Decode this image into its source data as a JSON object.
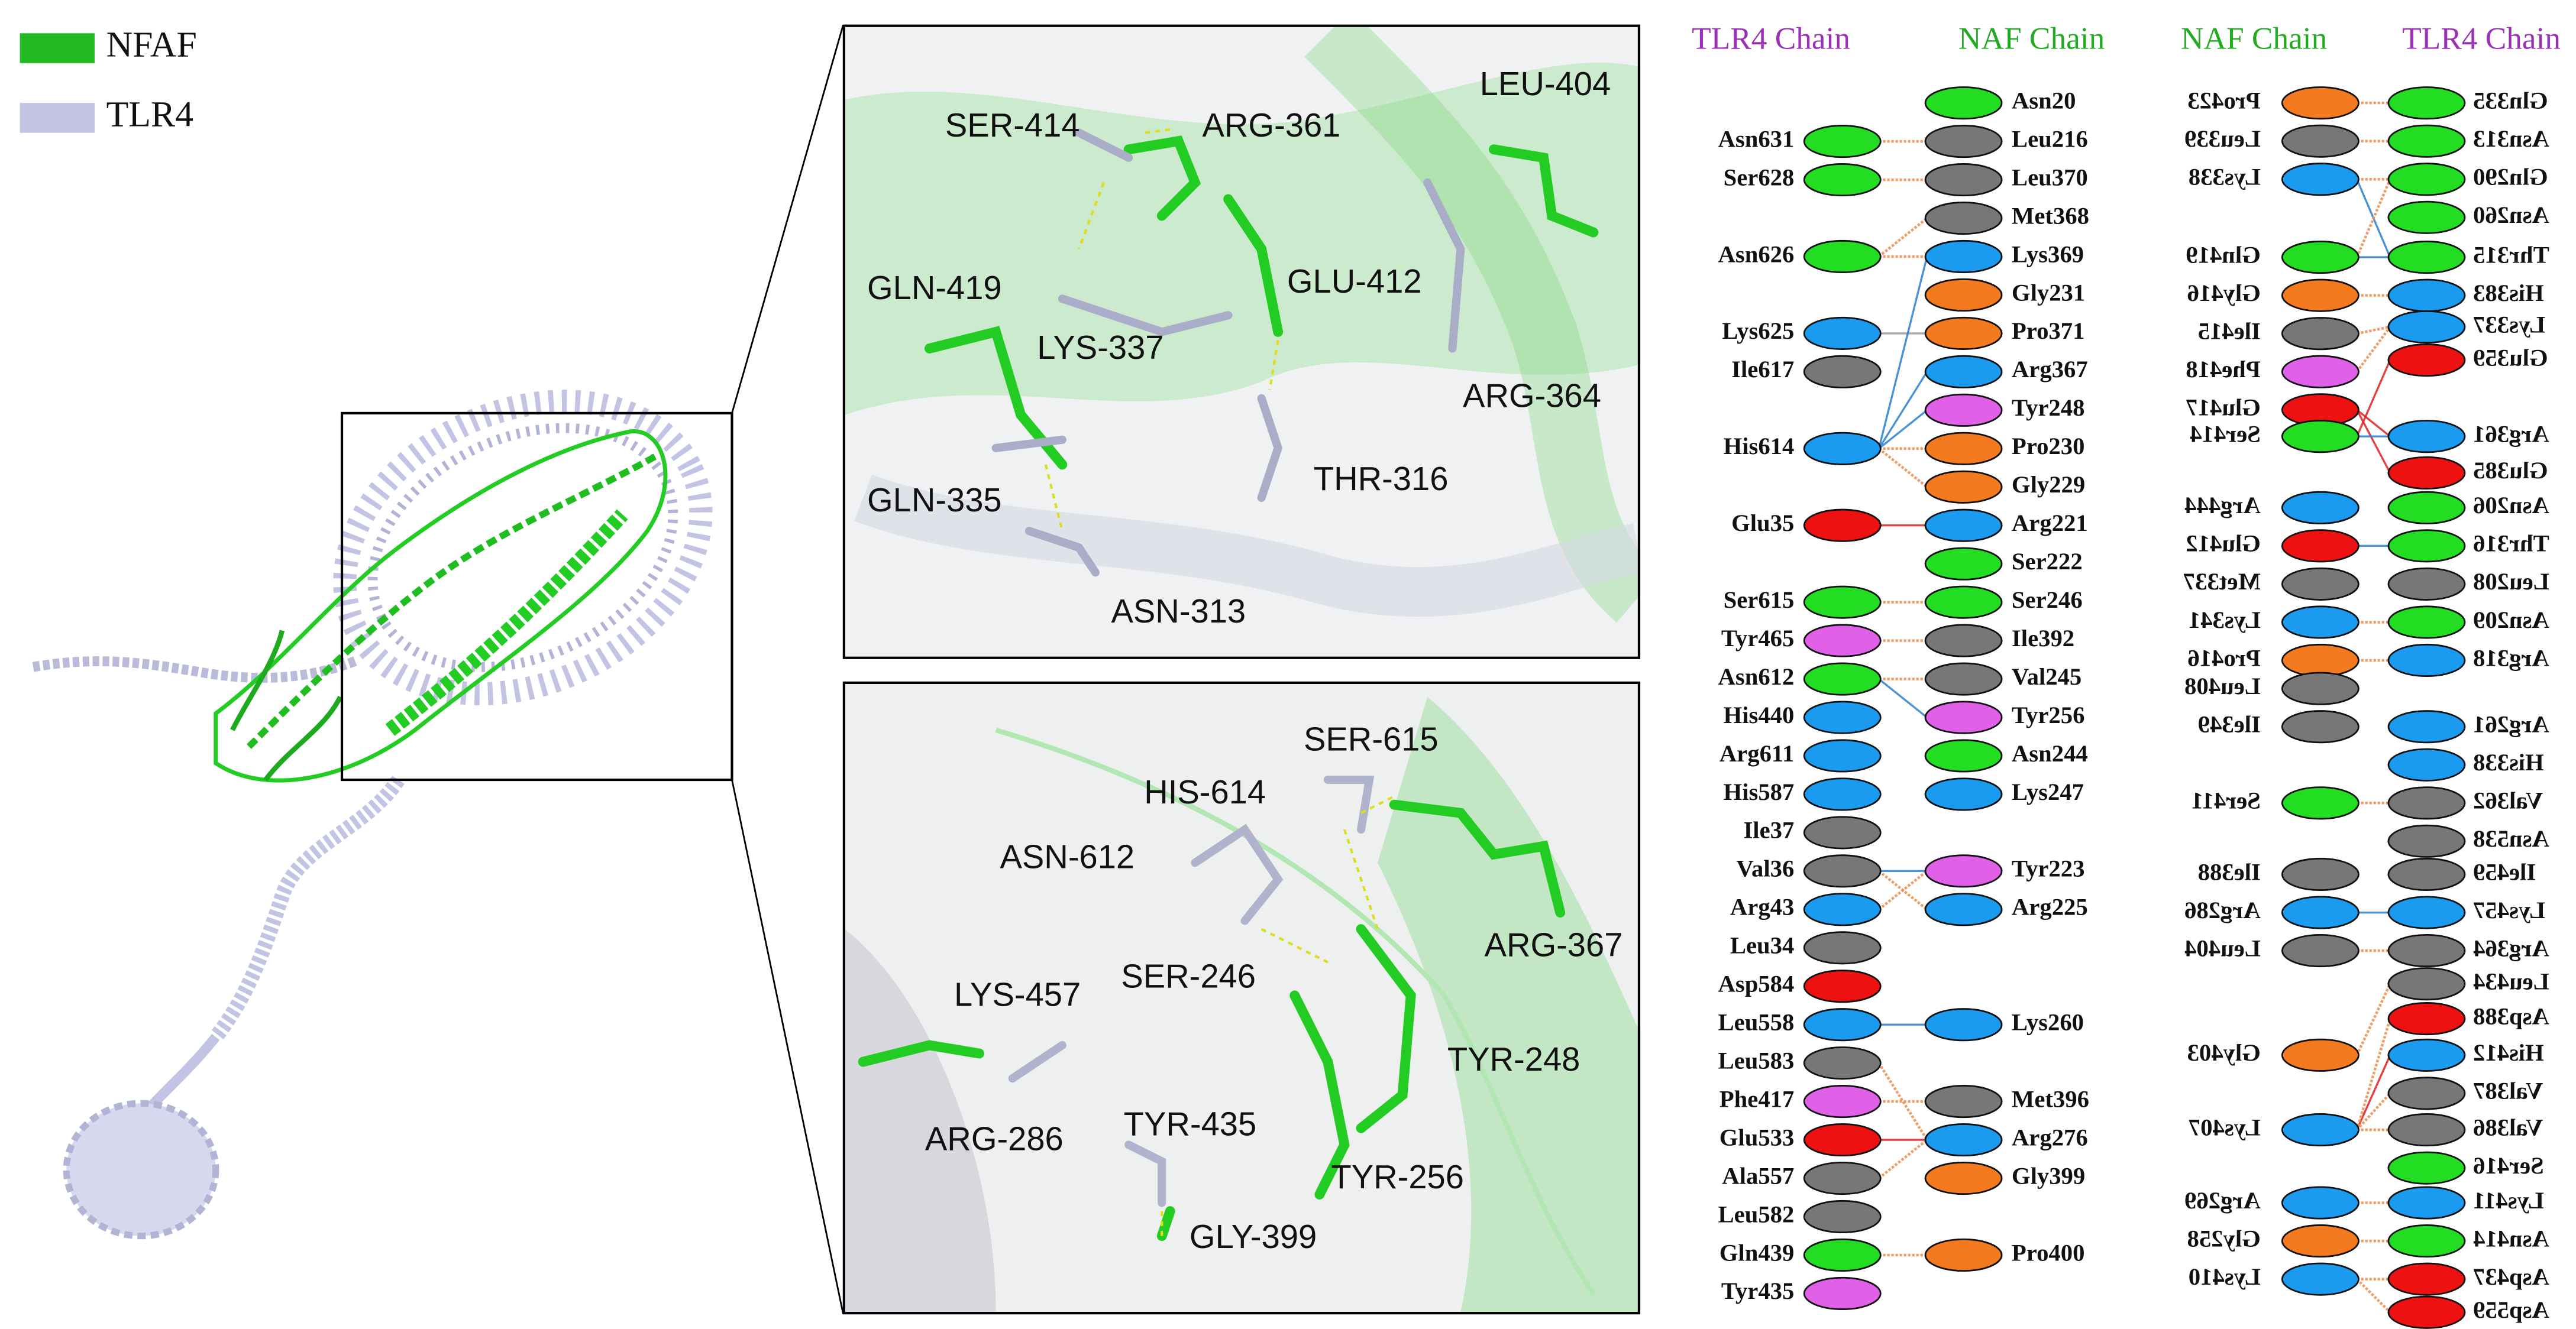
{
  "legend": [
    {
      "label": "NFAF",
      "color": "#22bb22"
    },
    {
      "label": "TLR4",
      "color": "#c3c4e3"
    }
  ],
  "zoom_panels": [
    {
      "labels": [
        "SER-414",
        "ARG-361",
        "LEU-404",
        "GLN-419",
        "GLU-412",
        "LYS-337",
        "ARG-364",
        "THR-316",
        "GLN-335",
        "ASN-313"
      ]
    },
    {
      "labels": [
        "SER-615",
        "HIS-614",
        "ASN-612",
        "SER-246",
        "ARG-367",
        "LYS-457",
        "TYR-248",
        "ARG-286",
        "TYR-435",
        "TYR-256",
        "GLY-399"
      ]
    }
  ],
  "interaction_diagrams": [
    {
      "headers": [
        {
          "label": "TLR4 Chain",
          "color": "#9b2fb5"
        },
        {
          "label": "NAF Chain",
          "color": "#22aa22"
        }
      ],
      "columns": [
        {
          "residues": [
            {
              "label": "Asn631",
              "color": "#22dd22"
            },
            {
              "label": "Ser628",
              "color": "#22dd22"
            },
            {
              "label": "Asn626",
              "color": "#22dd22"
            },
            {
              "label": "Lys625",
              "color": "#1a9bf0"
            },
            {
              "label": "Ile617",
              "color": "#777777"
            },
            {
              "label": "His614",
              "color": "#1a9bf0"
            },
            {
              "label": "Glu35",
              "color": "#ee1111"
            },
            {
              "label": "Ser615",
              "color": "#22dd22"
            },
            {
              "label": "Tyr465",
              "color": "#e060e8"
            },
            {
              "label": "Asn612",
              "color": "#22dd22"
            },
            {
              "label": "His440",
              "color": "#1a9bf0"
            },
            {
              "label": "Arg611",
              "color": "#1a9bf0"
            },
            {
              "label": "His587",
              "color": "#1a9bf0"
            },
            {
              "label": "Ile37",
              "color": "#777777"
            },
            {
              "label": "Val36",
              "color": "#777777"
            },
            {
              "label": "Arg43",
              "color": "#1a9bf0"
            },
            {
              "label": "Leu34",
              "color": "#777777"
            },
            {
              "label": "Asp584",
              "color": "#ee1111"
            },
            {
              "label": "Leu558",
              "color": "#1a9bf0"
            },
            {
              "label": "Leu583",
              "color": "#777777"
            },
            {
              "label": "Phe417",
              "color": "#e060e8"
            },
            {
              "label": "Glu533",
              "color": "#ee1111"
            },
            {
              "label": "Ala557",
              "color": "#777777"
            },
            {
              "label": "Leu582",
              "color": "#777777"
            },
            {
              "label": "Gln439",
              "color": "#22dd22"
            },
            {
              "label": "Tyr435",
              "color": "#e060e8"
            }
          ]
        },
        {
          "residues": [
            {
              "label": "Asn20",
              "color": "#22dd22"
            },
            {
              "label": "Leu216",
              "color": "#777777"
            },
            {
              "label": "Leu370",
              "color": "#777777"
            },
            {
              "label": "Met368",
              "color": "#777777"
            },
            {
              "label": "Lys369",
              "color": "#1a9bf0"
            },
            {
              "label": "Gly231",
              "color": "#f47a20"
            },
            {
              "label": "Pro371",
              "color": "#f47a20"
            },
            {
              "label": "Arg367",
              "color": "#1a9bf0"
            },
            {
              "label": "Tyr248",
              "color": "#e060e8"
            },
            {
              "label": "Pro230",
              "color": "#f47a20"
            },
            {
              "label": "Gly229",
              "color": "#f47a20"
            },
            {
              "label": "Arg221",
              "color": "#1a9bf0"
            },
            {
              "label": "Ser222",
              "color": "#22dd22"
            },
            {
              "label": "Ser246",
              "color": "#22dd22"
            },
            {
              "label": "Ile392",
              "color": "#777777"
            },
            {
              "label": "Val245",
              "color": "#777777"
            },
            {
              "label": "Tyr256",
              "color": "#e060e8"
            },
            {
              "label": "Asn244",
              "color": "#22dd22"
            },
            {
              "label": "Lys247",
              "color": "#1a9bf0"
            },
            {
              "label": "Tyr223",
              "color": "#e060e8"
            },
            {
              "label": "Arg225",
              "color": "#1a9bf0"
            },
            {
              "label": "Lys260",
              "color": "#1a9bf0"
            },
            {
              "label": "Met396",
              "color": "#777777"
            },
            {
              "label": "Arg276",
              "color": "#1a9bf0"
            },
            {
              "label": "Gly399",
              "color": "#f47a20"
            },
            {
              "label": "Pro400",
              "color": "#f47a20"
            }
          ]
        }
      ]
    },
    {
      "headers": [
        {
          "label": "NAF Chain",
          "color": "#22aa22"
        },
        {
          "label": "TLR4 Chain",
          "color": "#9b2fb5"
        }
      ],
      "columns": [
        {
          "residues": [
            {
              "label": "Pro423",
              "color": "#f47a20"
            },
            {
              "label": "Leu339",
              "color": "#777777"
            },
            {
              "label": "Lys338",
              "color": "#1a9bf0"
            },
            {
              "label": "Gln419",
              "color": "#22dd22"
            },
            {
              "label": "Gly416",
              "color": "#f47a20"
            },
            {
              "label": "Ile415",
              "color": "#777777"
            },
            {
              "label": "Phe418",
              "color": "#e060e8"
            },
            {
              "label": "Glu417",
              "color": "#ee1111"
            },
            {
              "label": "Ser414",
              "color": "#22dd22"
            },
            {
              "label": "Arg444",
              "color": "#1a9bf0"
            },
            {
              "label": "Glu412",
              "color": "#ee1111"
            },
            {
              "label": "Met337",
              "color": "#777777"
            },
            {
              "label": "Lys341",
              "color": "#1a9bf0"
            },
            {
              "label": "Pro416",
              "color": "#f47a20"
            },
            {
              "label": "Leu408",
              "color": "#777777"
            },
            {
              "label": "Ile349",
              "color": "#777777"
            },
            {
              "label": "Ser411",
              "color": "#22dd22"
            },
            {
              "label": "Ile388",
              "color": "#777777"
            },
            {
              "label": "Arg286",
              "color": "#1a9bf0"
            },
            {
              "label": "Leu404",
              "color": "#777777"
            },
            {
              "label": "Gly403",
              "color": "#f47a20"
            },
            {
              "label": "Lys407",
              "color": "#1a9bf0"
            },
            {
              "label": "Arg269",
              "color": "#1a9bf0"
            },
            {
              "label": "Gly258",
              "color": "#f47a20"
            },
            {
              "label": "Lys410",
              "color": "#1a9bf0"
            }
          ]
        },
        {
          "residues": [
            {
              "label": "Gln335",
              "color": "#22dd22"
            },
            {
              "label": "Asn313",
              "color": "#22dd22"
            },
            {
              "label": "Gln290",
              "color": "#22dd22"
            },
            {
              "label": "Asn260",
              "color": "#22dd22"
            },
            {
              "label": "Thr315",
              "color": "#22dd22"
            },
            {
              "label": "His383",
              "color": "#1a9bf0"
            },
            {
              "label": "Lys337",
              "color": "#1a9bf0"
            },
            {
              "label": "Glu359",
              "color": "#ee1111"
            },
            {
              "label": "Arg361",
              "color": "#1a9bf0"
            },
            {
              "label": "Glu385",
              "color": "#ee1111"
            },
            {
              "label": "Asn206",
              "color": "#22dd22"
            },
            {
              "label": "Thr316",
              "color": "#22dd22"
            },
            {
              "label": "Leu208",
              "color": "#777777"
            },
            {
              "label": "Asn209",
              "color": "#22dd22"
            },
            {
              "label": "Arg318",
              "color": "#1a9bf0"
            },
            {
              "label": "Arg261",
              "color": "#1a9bf0"
            },
            {
              "label": "His338",
              "color": "#1a9bf0"
            },
            {
              "label": "Val362",
              "color": "#777777"
            },
            {
              "label": "Asn538",
              "color": "#777777"
            },
            {
              "label": "Ile459",
              "color": "#777777"
            },
            {
              "label": "Lys457",
              "color": "#1a9bf0"
            },
            {
              "label": "Arg364",
              "color": "#777777"
            },
            {
              "label": "Leu434",
              "color": "#777777"
            },
            {
              "label": "Asp388",
              "color": "#ee1111"
            },
            {
              "label": "His412",
              "color": "#1a9bf0"
            },
            {
              "label": "Val387",
              "color": "#777777"
            },
            {
              "label": "Val386",
              "color": "#777777"
            },
            {
              "label": "Ser416",
              "color": "#22dd22"
            },
            {
              "label": "Lys411",
              "color": "#1a9bf0"
            },
            {
              "label": "Asn414",
              "color": "#22dd22"
            },
            {
              "label": "Asp437",
              "color": "#ee1111"
            },
            {
              "label": "Asp559",
              "color": "#ee1111"
            }
          ]
        }
      ]
    }
  ]
}
